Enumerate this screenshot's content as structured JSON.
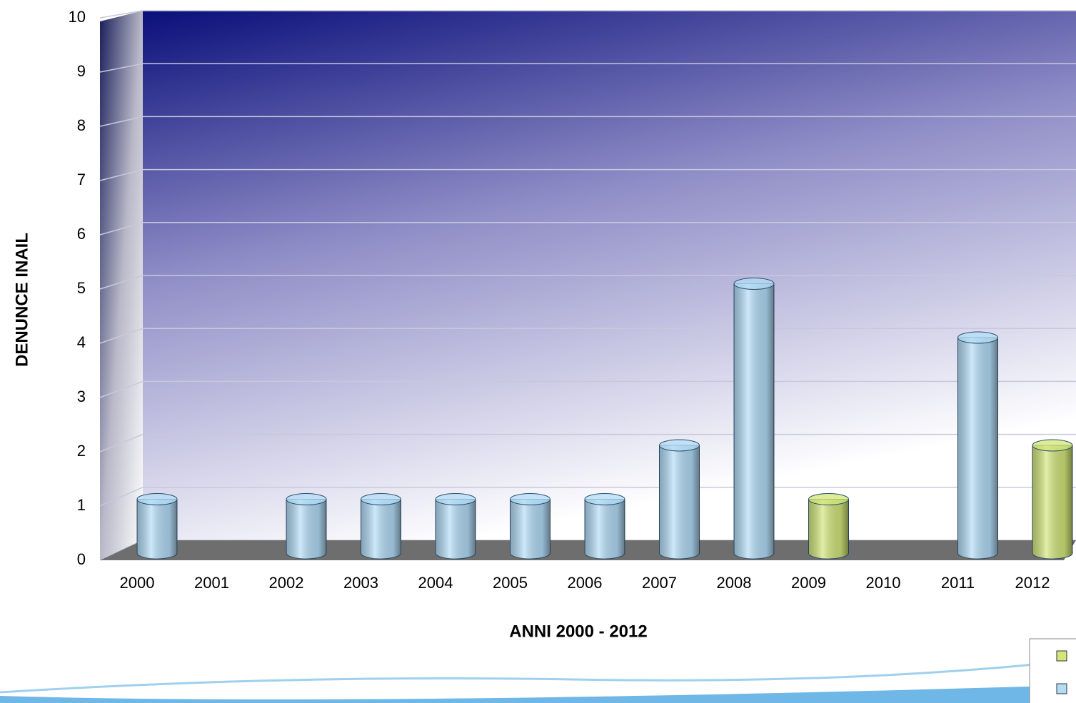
{
  "chart_data": {
    "type": "bar3d",
    "x_label": "ANNI 2000 - 2012",
    "y_label": "DENUNCE INAIL",
    "categories": [
      "2000",
      "2001",
      "2002",
      "2003",
      "2004",
      "2005",
      "2006",
      "2007",
      "2008",
      "2009",
      "2010",
      "2011",
      "2012"
    ],
    "series": [
      {
        "color": "#b3dcf7",
        "values": [
          1,
          null,
          1,
          1,
          1,
          1,
          1,
          2,
          5,
          null,
          null,
          4,
          null
        ]
      },
      {
        "color": "#d2e67a",
        "values": [
          null,
          null,
          null,
          null,
          null,
          null,
          null,
          null,
          null,
          1,
          null,
          null,
          2
        ]
      }
    ],
    "ylim": [
      0,
      10
    ],
    "yticks": [
      0,
      1,
      2,
      3,
      4,
      5,
      6,
      7,
      8,
      9,
      10
    ],
    "grid": true
  }
}
